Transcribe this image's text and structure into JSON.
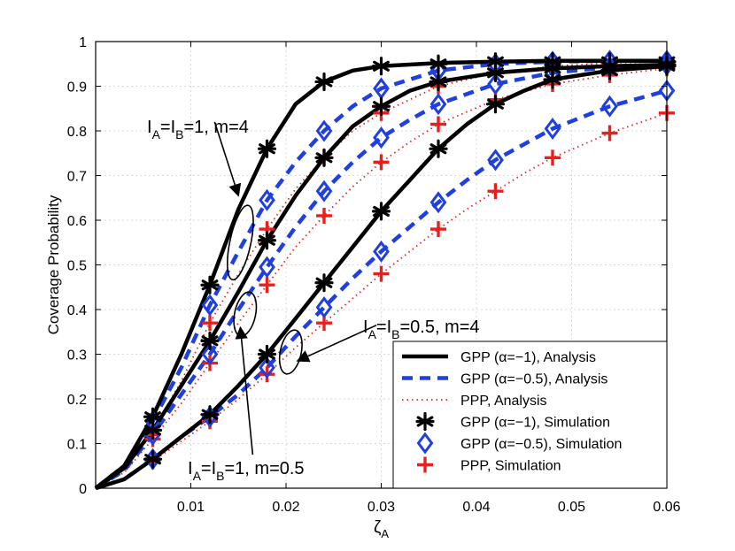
{
  "chart_data": {
    "type": "line",
    "title": "",
    "xlabel": "ζ",
    "xlabel_sub": "A",
    "ylabel": "Coverage Probability",
    "xlim": [
      0,
      0.06
    ],
    "ylim": [
      0,
      1
    ],
    "grid": true,
    "xticks": [
      0.01,
      0.02,
      0.03,
      0.04,
      0.05,
      0.06
    ],
    "xtick_labels": [
      "0.01",
      "0.02",
      "0.03",
      "0.04",
      "0.05",
      "0.06"
    ],
    "yticks": [
      0,
      0.1,
      0.2,
      0.3,
      0.4,
      0.5,
      0.6,
      0.7,
      0.8,
      0.9,
      1
    ],
    "ytick_labels": [
      "0",
      "0.1",
      "0.2",
      "0.3",
      "0.4",
      "0.5",
      "0.6",
      "0.7",
      "0.8",
      "0.9",
      "1"
    ],
    "legend_position": "bottom-right",
    "legend": [
      {
        "label": "GPP (α=−1), Analysis",
        "style": "solid-black"
      },
      {
        "label": "GPP (α=−0.5), Analysis",
        "style": "dashed-blue"
      },
      {
        "label": "PPP, Analysis",
        "style": "dotted-red"
      },
      {
        "label": "GPP (α=−1), Simulation",
        "style": "asterisk-black"
      },
      {
        "label": "GPP (α=−0.5), Simulation",
        "style": "diamond-blue"
      },
      {
        "label": "PPP, Simulation",
        "style": "plus-red"
      }
    ],
    "sim_x": [
      0.006,
      0.012,
      0.018,
      0.024,
      0.03,
      0.036,
      0.042,
      0.048,
      0.054,
      0.06
    ],
    "groups": [
      {
        "name": "I_A=I_B=1, m=4",
        "analysis": [
          {
            "model": "GPP (α=−1)",
            "x": [
              0,
              0.003,
              0.006,
              0.009,
              0.012,
              0.015,
              0.018,
              0.021,
              0.024,
              0.027,
              0.03,
              0.036,
              0.042,
              0.048,
              0.054,
              0.06
            ],
            "y": [
              0,
              0.05,
              0.16,
              0.3,
              0.455,
              0.625,
              0.76,
              0.86,
              0.91,
              0.935,
              0.945,
              0.952,
              0.955,
              0.957,
              0.957,
              0.957
            ]
          },
          {
            "model": "GPP (α=−0.5)",
            "x": [
              0,
              0.003,
              0.006,
              0.009,
              0.012,
              0.015,
              0.018,
              0.021,
              0.024,
              0.027,
              0.03,
              0.036,
              0.042,
              0.048,
              0.054,
              0.06
            ],
            "y": [
              0,
              0.05,
              0.15,
              0.27,
              0.41,
              0.53,
              0.645,
              0.73,
              0.8,
              0.855,
              0.895,
              0.935,
              0.95,
              0.955,
              0.957,
              0.957
            ]
          },
          {
            "model": "PPP",
            "x": [
              0,
              0.003,
              0.006,
              0.009,
              0.012,
              0.015,
              0.018,
              0.021,
              0.024,
              0.027,
              0.03,
              0.036,
              0.042,
              0.048,
              0.054,
              0.06
            ],
            "y": [
              0,
              0.045,
              0.13,
              0.24,
              0.37,
              0.48,
              0.58,
              0.67,
              0.74,
              0.8,
              0.84,
              0.9,
              0.93,
              0.945,
              0.952,
              0.955
            ]
          }
        ],
        "simulation": [
          {
            "model": "GPP (α=−1)",
            "x": [
              0.006,
              0.012,
              0.018,
              0.024,
              0.03,
              0.036,
              0.042,
              0.048,
              0.054,
              0.06
            ],
            "y": [
              0.16,
              0.455,
              0.76,
              0.91,
              0.945,
              0.95,
              0.955,
              0.955,
              0.955,
              0.955
            ]
          },
          {
            "model": "GPP (α=−0.5)",
            "x": [
              0.006,
              0.012,
              0.018,
              0.024,
              0.03,
              0.036,
              0.042,
              0.048,
              0.054,
              0.06
            ],
            "y": [
              0.15,
              0.41,
              0.645,
              0.8,
              0.895,
              0.935,
              0.95,
              0.955,
              0.957,
              0.957
            ]
          },
          {
            "model": "PPP",
            "x": [
              0.006,
              0.012,
              0.018,
              0.024,
              0.03,
              0.036,
              0.042,
              0.048,
              0.054,
              0.06
            ],
            "y": [
              0.12,
              0.37,
              0.58,
              0.74,
              0.84,
              0.9,
              0.93,
              0.945,
              0.95,
              0.955
            ]
          }
        ]
      },
      {
        "name": "I_A=I_B=1, m=0.5",
        "analysis": [
          {
            "model": "GPP (α=−1)",
            "x": [
              0,
              0.003,
              0.006,
              0.009,
              0.012,
              0.015,
              0.018,
              0.021,
              0.024,
              0.027,
              0.03,
              0.033,
              0.036,
              0.042,
              0.048,
              0.054,
              0.06
            ],
            "y": [
              0,
              0.045,
              0.13,
              0.23,
              0.33,
              0.44,
              0.555,
              0.655,
              0.74,
              0.81,
              0.855,
              0.89,
              0.91,
              0.93,
              0.94,
              0.945,
              0.948
            ]
          },
          {
            "model": "GPP (α=−0.5)",
            "x": [
              0,
              0.003,
              0.006,
              0.009,
              0.012,
              0.015,
              0.018,
              0.021,
              0.024,
              0.027,
              0.03,
              0.033,
              0.036,
              0.042,
              0.048,
              0.054,
              0.06
            ],
            "y": [
              0,
              0.04,
              0.12,
              0.21,
              0.3,
              0.4,
              0.495,
              0.585,
              0.665,
              0.73,
              0.785,
              0.825,
              0.86,
              0.905,
              0.93,
              0.943,
              0.948
            ]
          },
          {
            "model": "PPP",
            "x": [
              0,
              0.003,
              0.006,
              0.009,
              0.012,
              0.015,
              0.018,
              0.021,
              0.024,
              0.027,
              0.03,
              0.033,
              0.036,
              0.042,
              0.048,
              0.054,
              0.06
            ],
            "y": [
              0,
              0.035,
              0.11,
              0.19,
              0.28,
              0.37,
              0.455,
              0.54,
              0.61,
              0.675,
              0.73,
              0.775,
              0.815,
              0.87,
              0.905,
              0.925,
              0.94
            ]
          }
        ],
        "simulation": [
          {
            "model": "GPP (α=−1)",
            "x": [
              0.006,
              0.012,
              0.018,
              0.024,
              0.03,
              0.036,
              0.042,
              0.048,
              0.054,
              0.06
            ],
            "y": [
              0.13,
              0.33,
              0.555,
              0.74,
              0.855,
              0.91,
              0.93,
              0.94,
              0.945,
              0.948
            ]
          },
          {
            "model": "GPP (α=−0.5)",
            "x": [
              0.006,
              0.012,
              0.018,
              0.024,
              0.03,
              0.036,
              0.042,
              0.048,
              0.054,
              0.06
            ],
            "y": [
              0.12,
              0.3,
              0.495,
              0.665,
              0.785,
              0.86,
              0.905,
              0.93,
              0.943,
              0.948
            ]
          },
          {
            "model": "PPP",
            "x": [
              0.006,
              0.012,
              0.018,
              0.024,
              0.03,
              0.036,
              0.042,
              0.048,
              0.054,
              0.06
            ],
            "y": [
              0.11,
              0.28,
              0.455,
              0.61,
              0.73,
              0.815,
              0.87,
              0.905,
              0.925,
              0.94
            ]
          }
        ]
      },
      {
        "name": "I_A=I_B=0.5, m=4",
        "analysis": [
          {
            "model": "GPP (α=−1)",
            "x": [
              0,
              0.003,
              0.006,
              0.009,
              0.012,
              0.015,
              0.018,
              0.021,
              0.024,
              0.027,
              0.03,
              0.033,
              0.036,
              0.039,
              0.042,
              0.045,
              0.048,
              0.054,
              0.06
            ],
            "y": [
              0,
              0.02,
              0.065,
              0.115,
              0.165,
              0.23,
              0.3,
              0.38,
              0.46,
              0.54,
              0.62,
              0.69,
              0.76,
              0.815,
              0.86,
              0.89,
              0.915,
              0.935,
              0.945
            ]
          },
          {
            "model": "GPP (α=−0.5)",
            "x": [
              0,
              0.003,
              0.006,
              0.009,
              0.012,
              0.015,
              0.018,
              0.021,
              0.024,
              0.027,
              0.03,
              0.033,
              0.036,
              0.039,
              0.042,
              0.045,
              0.048,
              0.054,
              0.06
            ],
            "y": [
              0,
              0.02,
              0.065,
              0.115,
              0.16,
              0.21,
              0.27,
              0.34,
              0.405,
              0.47,
              0.53,
              0.585,
              0.64,
              0.69,
              0.735,
              0.77,
              0.805,
              0.855,
              0.89
            ]
          },
          {
            "model": "PPP",
            "x": [
              0,
              0.003,
              0.006,
              0.009,
              0.012,
              0.015,
              0.018,
              0.021,
              0.024,
              0.027,
              0.03,
              0.033,
              0.036,
              0.039,
              0.042,
              0.045,
              0.048,
              0.054,
              0.06
            ],
            "y": [
              0,
              0.02,
              0.06,
              0.105,
              0.15,
              0.2,
              0.255,
              0.315,
              0.37,
              0.425,
              0.48,
              0.53,
              0.58,
              0.625,
              0.665,
              0.705,
              0.74,
              0.795,
              0.84
            ]
          }
        ],
        "simulation": [
          {
            "model": "GPP (α=−1)",
            "x": [
              0.006,
              0.012,
              0.018,
              0.024,
              0.03,
              0.036,
              0.042,
              0.048,
              0.054,
              0.06
            ],
            "y": [
              0.065,
              0.165,
              0.3,
              0.46,
              0.62,
              0.76,
              0.86,
              0.915,
              0.935,
              0.945
            ]
          },
          {
            "model": "GPP (α=−0.5)",
            "x": [
              0.006,
              0.012,
              0.018,
              0.024,
              0.03,
              0.036,
              0.042,
              0.048,
              0.054,
              0.06
            ],
            "y": [
              0.065,
              0.16,
              0.27,
              0.405,
              0.53,
              0.64,
              0.735,
              0.805,
              0.855,
              0.89
            ]
          },
          {
            "model": "PPP",
            "x": [
              0.006,
              0.012,
              0.018,
              0.024,
              0.03,
              0.036,
              0.042,
              0.048,
              0.054,
              0.06
            ],
            "y": [
              0.06,
              0.15,
              0.255,
              0.37,
              0.48,
              0.58,
              0.665,
              0.74,
              0.795,
              0.84
            ]
          }
        ]
      }
    ],
    "annotations": [
      {
        "base": "I",
        "sub1": "A",
        "eq": "=I",
        "sub2": "B",
        "rest": "=1, m=4"
      },
      {
        "base": "I",
        "sub1": "A",
        "eq": "=I",
        "sub2": "B",
        "rest": "=1, m=0.5"
      },
      {
        "base": "I",
        "sub1": "A",
        "eq": "=I",
        "sub2": "B",
        "rest": "=0.5, m=4"
      }
    ],
    "annotation_anchors": [
      {
        "ellipse_cx": 0.0152,
        "ellipse_cy": 0.55,
        "ellipse_rx": 0.0011,
        "ellipse_ry": 0.085,
        "arrow_from": [
          0.0125,
          0.82
        ],
        "arrow_to": [
          0.015,
          0.655
        ]
      },
      {
        "ellipse_cx": 0.0157,
        "ellipse_cy": 0.39,
        "ellipse_rx": 0.0011,
        "ellipse_ry": 0.05,
        "arrow_from": [
          0.0165,
          0.075
        ],
        "arrow_to": [
          0.0152,
          0.36
        ]
      },
      {
        "ellipse_cx": 0.0205,
        "ellipse_cy": 0.305,
        "ellipse_rx": 0.0011,
        "ellipse_ry": 0.05,
        "arrow_from": [
          0.0295,
          0.365
        ],
        "arrow_to": [
          0.0212,
          0.285
        ]
      }
    ]
  },
  "colors": {
    "gpp1": "#000000",
    "gpp05": "#1f3fe0",
    "ppp": "#e8201d",
    "grid": "#d9d9d9",
    "axis": "#000000"
  }
}
